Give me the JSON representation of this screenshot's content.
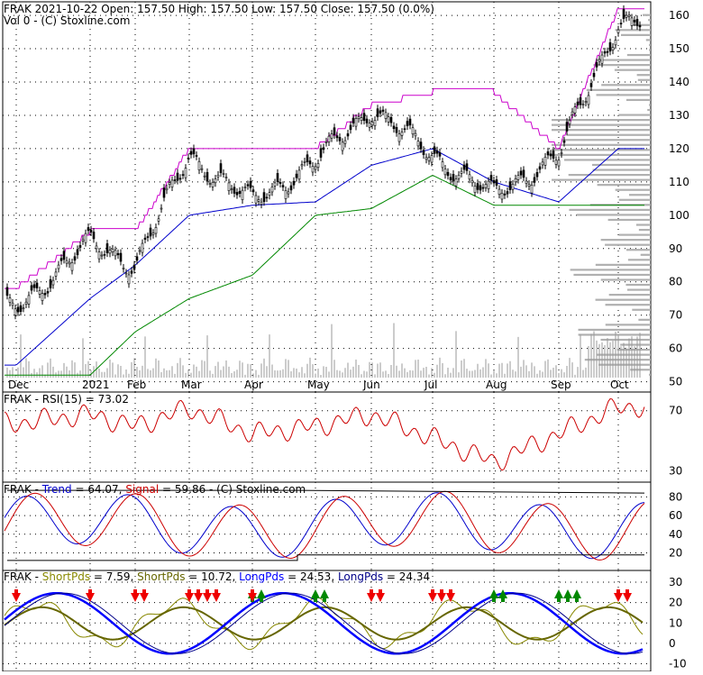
{
  "header": {
    "line1": "FRAK  2021-10-22 Open: 157.50  High: 157.50  Low: 157.50  Close: 157.50 (0.0%)",
    "line2": "Vol 0   - (C) Stoxline.com"
  },
  "colors": {
    "price": "#000000",
    "upper_band": "#cc00cc",
    "mid_band": "#0000cc",
    "lower_band": "#008800",
    "volume": "#999999",
    "profile": "#b0b0b0",
    "rsi": "#cc0000",
    "trend": "#0000cc",
    "signal": "#cc0000",
    "short1": "#888800",
    "short2": "#666600",
    "long1": "#0000ff",
    "long2": "#000088",
    "arrow_up": "#008800",
    "arrow_down": "#ee0000"
  },
  "x_axis": {
    "labels": [
      "Dec",
      "2021",
      "Feb",
      "Mar",
      "Apr",
      "May",
      "Jun",
      "Jul",
      "Aug",
      "Sep",
      "Oct"
    ]
  },
  "chart_data": [
    {
      "type": "candlestick",
      "title": "FRAK  2021-10-22 Open: 157.50  High: 157.50  Low: 157.50  Close: 157.50 (0.0%)",
      "y_ticks": [
        160,
        150,
        140,
        130,
        120,
        110,
        100,
        90,
        80,
        70,
        60,
        50
      ],
      "ylim": [
        48,
        163
      ],
      "grid": true,
      "close_anchors": [
        [
          "Dec",
          72
        ],
        [
          "2021",
          92
        ],
        [
          "Feb",
          85
        ],
        [
          "Mar",
          118
        ],
        [
          "Apr",
          104
        ],
        [
          "May",
          116
        ],
        [
          "Jun",
          132
        ],
        [
          "Jul",
          118
        ],
        [
          "Aug",
          106
        ],
        [
          "Sep",
          118
        ],
        [
          "Oct",
          158
        ]
      ],
      "upper_band_anchors": [
        [
          "Dec",
          78
        ],
        [
          "2021",
          95
        ],
        [
          "Feb",
          95
        ],
        [
          "Mar",
          120
        ],
        [
          "Apr",
          120
        ],
        [
          "May",
          120
        ],
        [
          "Jun",
          133
        ],
        [
          "Jul",
          137
        ],
        [
          "Aug",
          137
        ],
        [
          "Sep",
          120
        ],
        [
          "Oct",
          162
        ]
      ],
      "mid_band_anchors": [
        [
          "Dec",
          55
        ],
        [
          "2021",
          75
        ],
        [
          "Feb",
          85
        ],
        [
          "Mar",
          100
        ],
        [
          "Apr",
          103
        ],
        [
          "May",
          104
        ],
        [
          "Jun",
          115
        ],
        [
          "Jul",
          120
        ],
        [
          "Aug",
          110
        ],
        [
          "Sep",
          104
        ],
        [
          "Oct",
          120
        ]
      ],
      "lower_band_anchors": [
        [
          "Dec",
          52
        ],
        [
          "2021",
          52
        ],
        [
          "Feb",
          65
        ],
        [
          "Mar",
          75
        ],
        [
          "Apr",
          82
        ],
        [
          "May",
          100
        ],
        [
          "Jun",
          102
        ],
        [
          "Jul",
          112
        ],
        [
          "Aug",
          103
        ],
        [
          "Sep",
          103
        ],
        [
          "Oct",
          103
        ]
      ]
    },
    {
      "type": "line",
      "title": "FRAK - RSI(15) = 73.02",
      "series": [
        {
          "name": "RSI(15)",
          "last": 73.02
        }
      ],
      "y_ticks": [
        70,
        30
      ],
      "ylim": [
        25,
        80
      ],
      "rsi_anchors": [
        [
          "Dec",
          62
        ],
        [
          "2021",
          68
        ],
        [
          "Feb",
          60
        ],
        [
          "Mar",
          72
        ],
        [
          "Apr",
          55
        ],
        [
          "May",
          60
        ],
        [
          "Jun",
          68
        ],
        [
          "Jul",
          52
        ],
        [
          "Aug",
          36
        ],
        [
          "Sep",
          55
        ],
        [
          "Oct",
          73
        ]
      ]
    },
    {
      "type": "line",
      "title_parts": [
        "FRAK - ",
        "Trend",
        " = 64.07, ",
        "Signal",
        " = 59.86 - (C) Stoxline.com"
      ],
      "series": [
        {
          "name": "Trend",
          "last": 64.07
        },
        {
          "name": "Signal",
          "last": 59.86
        }
      ],
      "y_ticks": [
        80,
        60,
        40,
        20
      ],
      "ylim": [
        5,
        92
      ]
    },
    {
      "type": "line",
      "title_parts": [
        "FRAK - ",
        "ShortPds",
        " = 7.59, ",
        "ShortPds",
        " = 10.72, ",
        "LongPds",
        " = 24.53, ",
        "LongPds",
        " = 24.34"
      ],
      "series": [
        {
          "name": "ShortPds",
          "last": 7.59
        },
        {
          "name": "ShortPds",
          "last": 10.72
        },
        {
          "name": "LongPds",
          "last": 24.53
        },
        {
          "name": "LongPds",
          "last": 24.34
        }
      ],
      "y_ticks": [
        30,
        20,
        10,
        0,
        -10
      ],
      "ylim": [
        -12,
        34
      ],
      "up_arrow_months": [
        "Apr",
        "Apr",
        "May",
        "May",
        "Aug",
        "Aug",
        "Sep",
        "Sep",
        "Sep"
      ],
      "down_arrow_months": [
        "Dec",
        "2021",
        "Feb",
        "Feb",
        "Mar",
        "Mar",
        "Mar",
        "Mar",
        "Apr",
        "Jun",
        "Jun",
        "Jul",
        "Jul",
        "Jul",
        "Oct",
        "Oct"
      ]
    }
  ]
}
